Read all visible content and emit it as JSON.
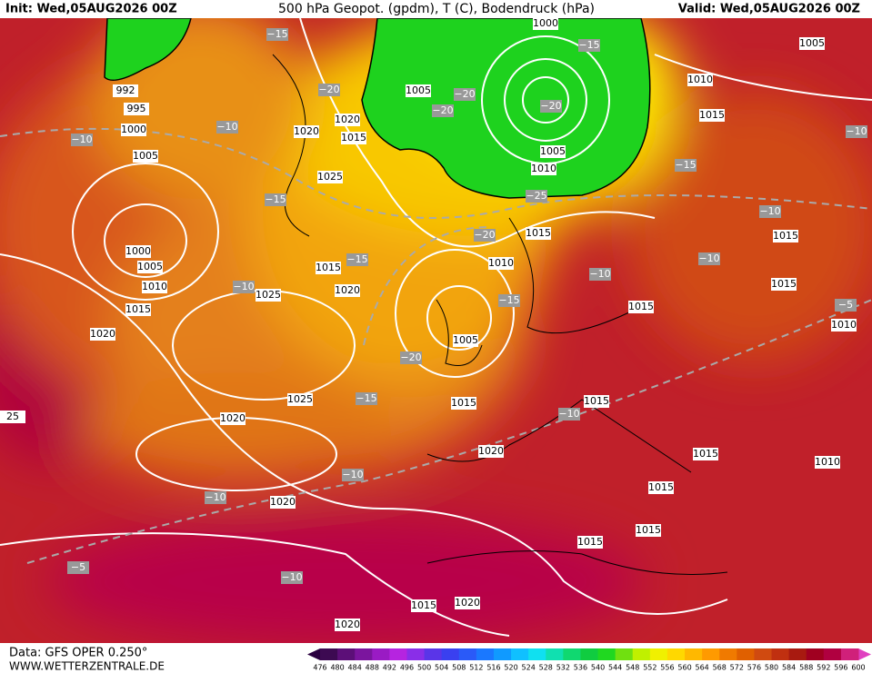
{
  "header": {
    "init": "Init: Wed,05AUG2026 00Z",
    "title": "500 hPa Geopot. (gpdm), T (C), Bodendruck (hPa)",
    "valid": "Valid: Wed,05AUG2026 00Z"
  },
  "footer": {
    "data": "Data: GFS OPER 0.250°",
    "site": "WWW.WETTERZENTRALE.DE"
  },
  "colorbar": {
    "labels": [
      476,
      480,
      484,
      488,
      492,
      496,
      500,
      504,
      508,
      512,
      516,
      520,
      524,
      528,
      532,
      536,
      540,
      544,
      548,
      552,
      556,
      560,
      564,
      568,
      572,
      576,
      580,
      584,
      588,
      592,
      596,
      600
    ],
    "colors": [
      "#3d0a52",
      "#5c0f78",
      "#7b159e",
      "#9a1bc4",
      "#b624e0",
      "#8a2ee8",
      "#5a35e8",
      "#3a40f0",
      "#2a5af8",
      "#1a78ff",
      "#109aff",
      "#10c0ff",
      "#10e0f0",
      "#10e0b0",
      "#10d870",
      "#10cc40",
      "#20d820",
      "#70e010",
      "#c0f000",
      "#f0f000",
      "#ffd800",
      "#ffb800",
      "#ff9a00",
      "#f07a00",
      "#e06000",
      "#d04a10",
      "#c03010",
      "#a81a10",
      "#a00020",
      "#b00040",
      "#d0207a"
    ]
  },
  "isobars": [
    "1000",
    "1005",
    "1010",
    "1015",
    "1005",
    "1020",
    "1020",
    "1015",
    "1025",
    "995",
    "1000",
    "1005",
    "992",
    "1005",
    "1010",
    "1015",
    "1010",
    "1015",
    "1020",
    "1025",
    "1010",
    "1015",
    "1000",
    "1005",
    "1020",
    "1005",
    "1015",
    "1015",
    "1025",
    "1020",
    "1020",
    "1015",
    "1010",
    "1015",
    "1020",
    "1015",
    "1015",
    "1015",
    "1015",
    "1010",
    "1015",
    "1015",
    "1020",
    "1020",
    "25"
  ],
  "temperatures": [
    "−15",
    "−15",
    "−20",
    "−20",
    "−20",
    "−20",
    "−10",
    "−10",
    "−10",
    "−15",
    "−25",
    "−15",
    "−10",
    "−20",
    "−15",
    "−10",
    "−10",
    "−10",
    "−15",
    "−5",
    "−20",
    "−15",
    "−10",
    "−10",
    "−10",
    "−5",
    "−10"
  ]
}
